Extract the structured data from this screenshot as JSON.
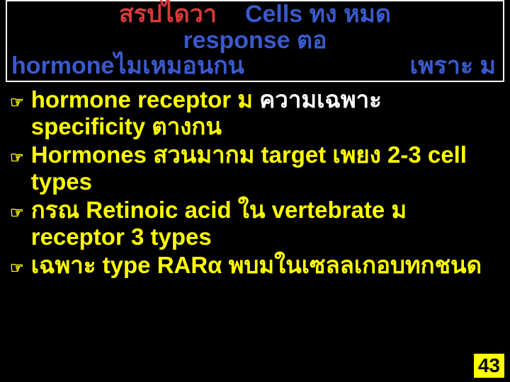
{
  "title": {
    "line1_left": "สรปไดวา",
    "line1_right": "Cells ทง   หมด",
    "line2": "response ตอ",
    "line3_left": "hormoneไมเหมอนกน",
    "line3_right": "เพราะ ม"
  },
  "bullets": [
    {
      "parts": [
        {
          "text": "hormone receptor ม  ",
          "color": "yellow"
        },
        {
          "text": "ความเฉพาะ",
          "color": "white"
        },
        {
          "text": " specificity ตางกน",
          "color": "yellow"
        }
      ]
    },
    {
      "parts": [
        {
          "text": "Hormones สวนมากม      target เพยง   2-3 cell types",
          "color": "yellow"
        }
      ]
    },
    {
      "parts": [
        {
          "text": "กรณ   Retinoic acid ใน vertebrate ม   receptor 3 types",
          "color": "yellow"
        }
      ]
    },
    {
      "parts": [
        {
          "text": "เฉพาะ type RARα พบมในเซลลเกอบทกชนด",
          "color": "yellow"
        }
      ]
    }
  ],
  "page_number": "43",
  "colors": {
    "background": "#000000",
    "title_red": "#d83a3a",
    "title_blue": "#3a5acc",
    "yellow": "#ffff00",
    "white": "#ffffff"
  }
}
